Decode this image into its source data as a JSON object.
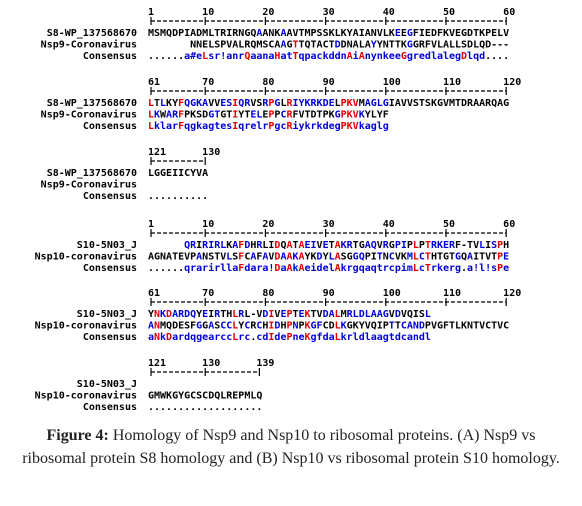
{
  "blocks": [
    {
      "start": 1,
      "ruler": [
        1,
        10,
        20,
        30,
        40,
        50,
        60
      ],
      "rows": [
        {
          "name": "S8-WP_137568670",
          "seq": "MSMQDPIADMLTRIRNGQAANKAAVTMPSSKLKYAIANVLKEEGFIEDFKVEGDTKPELV"
        },
        {
          "name": "Nsp9-Coronavirus",
          "seq": "       NNELSPVALRQMSCAAGTTQTACTDDNALAYYNTTKGGRFVLALLSDLQD---"
        },
        {
          "name": "Consensus",
          "seq": "......a#eLsr!anrQaanaHatTqpackddnAiAnynkeeGgredlalegDlqd...."
        }
      ]
    },
    {
      "start": 61,
      "ruler": [
        61,
        70,
        80,
        90,
        100,
        110,
        120
      ],
      "rows": [
        {
          "name": "S8-WP_137568670",
          "seq": "LTLKYFQGKAVVESIQRVSRPGLRIYKRKDELPKVMAGLGIAVVSTSKGVMTDRAARQAG"
        },
        {
          "name": "Nsp9-Coronavirus",
          "seq": "LKWARFPKSDGTGTIYTELEPPCRFVTDTPKGPKVKYLYF"
        },
        {
          "name": "Consensus",
          "seq": "LklarFqgkagtesIqrelrPgcRiykrkdegPKVkaglg"
        }
      ]
    },
    {
      "start": 121,
      "ruler": [
        121,
        130
      ],
      "rows": [
        {
          "name": "S8-WP_137568670",
          "seq": "LGGEIICYVA"
        },
        {
          "name": "Nsp9-Coronavirus",
          "seq": ""
        },
        {
          "name": "Consensus",
          "seq": ".........."
        }
      ]
    },
    {
      "start": 1,
      "ruler": [
        1,
        10,
        20,
        30,
        40,
        50,
        60
      ],
      "rows": [
        {
          "name": "S10-5N03_J",
          "seq": "      QRIRIRLKAFDHRLIDQATAEIVETAKRTGAQVRGPIPLPTRKERF-TVLISPH"
        },
        {
          "name": "Nsp10-coronavirus",
          "seq": "AGNATEVPANSTVLSFCAFAVDAAKAYKDYLASGGQPITNCVKMLCTHTGTGQAITVTPE"
        },
        {
          "name": "Consensus",
          "seq": "......qrarirllaFdara!DaAkAeidelAkrgqaqtrcpimLcTrkerg.a!l!sPe"
        }
      ]
    },
    {
      "start": 61,
      "ruler": [
        61,
        70,
        80,
        90,
        100,
        110,
        120
      ],
      "rows": [
        {
          "name": "S10-5N03_J",
          "seq": "YNKDARDQYEIRTHLRL-VDIVEPTEKTVDALMRLDLAAGVDVQISL"
        },
        {
          "name": "Nsp10-coronavirus",
          "seq": "ANMQDESFGGASCCLYCRCHIDHPNPKGFCDLKGKYVQIPTTCANDPVGFTLKNTVCTVC"
        },
        {
          "name": "Consensus",
          "seq": "aNkDardqgearccLrc.cdIdePneKgfdaLkrldlaagtdcandl"
        }
      ]
    },
    {
      "start": 121,
      "ruler": [
        121,
        130,
        139
      ],
      "rows": [
        {
          "name": "S10-5N03_J",
          "seq": ""
        },
        {
          "name": "Nsp10-coronavirus",
          "seq": "GMWKGYGCSCDQLREPMLQ"
        },
        {
          "name": "Consensus",
          "seq": "..................."
        }
      ]
    }
  ],
  "caption": {
    "label": "Figure 4:",
    "text": "Homology of Nsp9 and Nsp10 to ribosomal proteins. (A) Nsp9 vs ribosomal protein S8 homology and (B) Nsp10 vs ribosomal protein S10 homology."
  }
}
